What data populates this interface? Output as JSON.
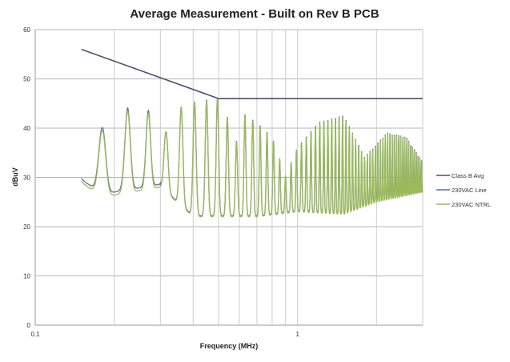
{
  "chart_data": {
    "type": "line",
    "title": "Average Measurement - Built on Rev B PCB",
    "xlabel": "Frequency (MHz)",
    "ylabel": "dBuV",
    "xscale": "log",
    "xlim": [
      0.1,
      3
    ],
    "ylim": [
      0,
      60
    ],
    "yticks": [
      0,
      10,
      20,
      30,
      40,
      50,
      60
    ],
    "xtick_labels": [
      {
        "value": 0.1,
        "label": "0.1"
      },
      {
        "value": 1,
        "label": "1"
      }
    ],
    "x_gridlines": [
      0.2,
      0.3,
      0.4,
      0.5,
      0.6,
      0.7,
      0.8,
      0.9,
      1,
      2,
      3
    ],
    "grid": true,
    "legend_position": "right",
    "harmonic_spacing_mhz": 0.045,
    "series": [
      {
        "name": "Class B Avg",
        "color": "#4a5068",
        "points": [
          [
            0.15,
            56
          ],
          [
            0.5,
            46
          ],
          [
            3,
            46
          ]
        ]
      },
      {
        "name": "230VAC Line",
        "color": "#5b6f95",
        "offset_db": 0.6,
        "start_mhz": 0.15
      },
      {
        "name": "230VAC NTRL",
        "color": "#9bbb59",
        "offset_db": 0,
        "start_mhz": 0.15
      }
    ],
    "emission_peak_envelope": [
      [
        0.18,
        39.5
      ],
      [
        0.225,
        43.5
      ],
      [
        0.27,
        43
      ],
      [
        0.315,
        39
      ],
      [
        0.36,
        44
      ],
      [
        0.4,
        45
      ],
      [
        0.45,
        45.5
      ],
      [
        0.5,
        46
      ],
      [
        0.54,
        42
      ],
      [
        0.58,
        36.5
      ],
      [
        0.63,
        42.5
      ],
      [
        0.7,
        41
      ],
      [
        0.8,
        38
      ],
      [
        0.9,
        30
      ],
      [
        1.0,
        36
      ],
      [
        1.2,
        41
      ],
      [
        1.5,
        42.5
      ],
      [
        1.8,
        34
      ],
      [
        2.2,
        39
      ],
      [
        2.6,
        38
      ],
      [
        3,
        33
      ]
    ],
    "emission_valley_envelope": [
      [
        0.15,
        29
      ],
      [
        0.18,
        26
      ],
      [
        0.3,
        28
      ],
      [
        0.4,
        22
      ],
      [
        0.7,
        22
      ],
      [
        1,
        23
      ],
      [
        1.5,
        22.5
      ],
      [
        2,
        25
      ],
      [
        3,
        27
      ]
    ]
  }
}
